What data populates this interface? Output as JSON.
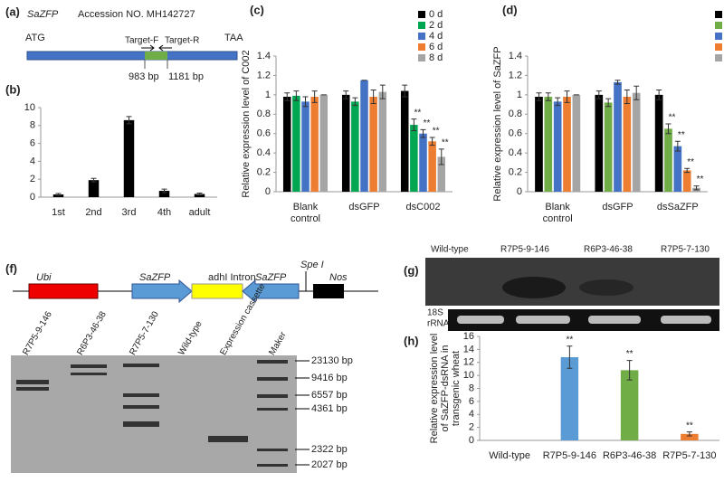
{
  "panel_a": {
    "label": "(a)",
    "gene": "SaZFP",
    "accession": "Accession NO. MH142727",
    "start": "ATG",
    "stop": "TAA",
    "primers": [
      "Target-F",
      "Target-R"
    ],
    "positions": [
      "983 bp",
      "1181 bp"
    ]
  },
  "panel_f": {
    "label": "(f)",
    "elements": [
      "Ubi",
      "SaZFP",
      "adhI Intron",
      "SaZFP",
      "Spe I",
      "Nos"
    ],
    "lanes": [
      "R7P5-9-146",
      "R6P3-46-38",
      "R7P5-7-130",
      "Wild-type",
      "Expression cassette",
      "Maker"
    ],
    "markers": [
      "23130 bp",
      "9416 bp",
      "6557 bp",
      "4361 bp",
      "2322 bp",
      "2027 bp"
    ]
  },
  "panel_g": {
    "label": "(g)",
    "lanes": [
      "Wild-type",
      "R7P5-9-146",
      "R6P3-46-38",
      "R7P5-7-130"
    ],
    "control": [
      "18S",
      "rRNA"
    ]
  },
  "chart_data": [
    {
      "type": "bar",
      "panel": "(b)",
      "categories": [
        "1st",
        "2nd",
        "3rd",
        "4th",
        "adult"
      ],
      "series": [
        {
          "color": "#000000",
          "values": [
            0.3,
            1.9,
            8.6,
            0.7,
            0.35
          ],
          "errors": [
            0.1,
            0.2,
            0.4,
            0.2,
            0.1
          ]
        }
      ],
      "ylim": [
        0,
        10
      ],
      "yticks": [
        0,
        2,
        4,
        6,
        8,
        10
      ]
    },
    {
      "type": "bar",
      "panel": "(c)",
      "ylabel": [
        "Relative expression level of C002"
      ],
      "categories": [
        "Blank control",
        "dsGFP",
        "dsC002"
      ],
      "series": [
        {
          "name": "0 d",
          "color": "#000000",
          "values": [
            0.98,
            1.0,
            1.04
          ],
          "errors": [
            0.04,
            0.04,
            0.06
          ],
          "sig": [
            null,
            null,
            null
          ]
        },
        {
          "name": "2 d",
          "color": "#00a651",
          "values": [
            0.99,
            0.93,
            0.69
          ],
          "errors": [
            0.05,
            0.04,
            0.06
          ],
          "sig": [
            null,
            null,
            "**"
          ]
        },
        {
          "name": "4 d",
          "color": "#4472c4",
          "values": [
            0.93,
            1.15,
            0.6
          ],
          "errors": [
            0.05,
            0.0,
            0.04
          ],
          "sig": [
            null,
            null,
            "**"
          ]
        },
        {
          "name": "6 d",
          "color": "#ed7d31",
          "values": [
            0.98,
            0.98,
            0.52
          ],
          "errors": [
            0.06,
            0.07,
            0.04
          ],
          "sig": [
            null,
            null,
            "**"
          ]
        },
        {
          "name": "8 d",
          "color": "#a5a5a5",
          "values": [
            1.0,
            1.03,
            0.36
          ],
          "errors": [
            0.0,
            0.07,
            0.08
          ],
          "sig": [
            null,
            null,
            "**"
          ]
        }
      ],
      "ylim": [
        0,
        1.4
      ],
      "yticks": [
        0,
        0.2,
        0.4,
        0.6,
        0.8,
        1,
        1.2,
        1.4
      ]
    },
    {
      "type": "bar",
      "panel": "(d)",
      "ylabel": [
        "Relative expression level of SaZFP"
      ],
      "categories": [
        "Blank control",
        "dsGFP",
        "dsSaZFP"
      ],
      "series": [
        {
          "color": "#000000",
          "values": [
            0.98,
            1.0,
            1.0
          ],
          "errors": [
            0.04,
            0.04,
            0.05
          ],
          "sig": [
            null,
            null,
            null
          ]
        },
        {
          "color": "#70ad47",
          "values": [
            0.98,
            0.92,
            0.65
          ],
          "errors": [
            0.04,
            0.04,
            0.05
          ],
          "sig": [
            null,
            null,
            "**"
          ]
        },
        {
          "color": "#4472c4",
          "values": [
            0.93,
            1.13,
            0.47
          ],
          "errors": [
            0.04,
            0.02,
            0.05
          ],
          "sig": [
            null,
            null,
            "**"
          ]
        },
        {
          "color": "#ed7d31",
          "values": [
            0.98,
            0.98,
            0.22
          ],
          "errors": [
            0.06,
            0.07,
            0.02
          ],
          "sig": [
            null,
            null,
            "**"
          ]
        },
        {
          "color": "#a5a5a5",
          "values": [
            1.0,
            1.02,
            0.04
          ],
          "errors": [
            0.0,
            0.07,
            0.02
          ],
          "sig": [
            null,
            null,
            "**"
          ]
        }
      ],
      "ylim": [
        0,
        1.4
      ],
      "yticks": [
        0,
        0.2,
        0.4,
        0.6,
        0.8,
        1,
        1.2,
        1.4
      ]
    },
    {
      "type": "bar",
      "panel": "(h)",
      "ylabel": [
        "Relative expression level",
        "of SaZFP-dsRNA in",
        "transgenic wheat"
      ],
      "categories": [
        "Wild-type",
        "R7P5-9-146",
        "R6P3-46-38",
        "R7P5-7-130"
      ],
      "values": [
        null,
        12.8,
        10.8,
        1.0
      ],
      "errors": [
        null,
        1.7,
        1.5,
        0.3
      ],
      "colors": [
        "#5b9bd5",
        "#5b9bd5",
        "#70ad47",
        "#ed7d31"
      ],
      "sig": [
        null,
        "**",
        "**",
        "**"
      ],
      "ylim": [
        0,
        16
      ],
      "yticks": [
        0,
        2,
        4,
        6,
        8,
        10,
        12,
        14,
        16
      ]
    }
  ]
}
